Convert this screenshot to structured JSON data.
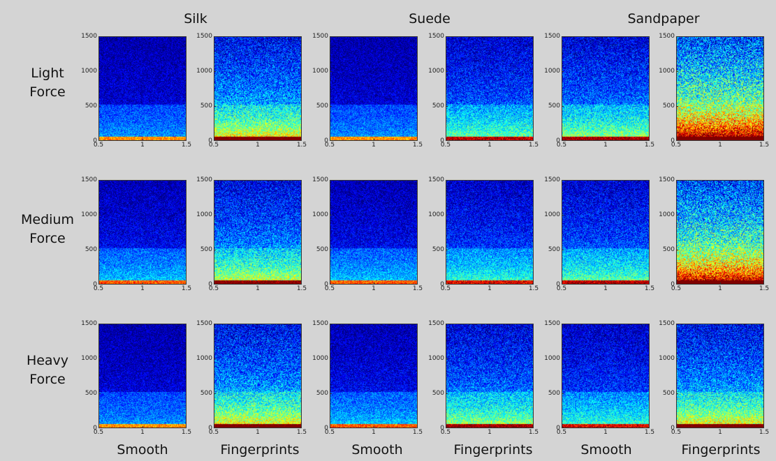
{
  "columns": [
    {
      "label": "Silk"
    },
    {
      "label": "Suede"
    },
    {
      "label": "Sandpaper"
    }
  ],
  "rows": [
    {
      "line1": "Light",
      "line2": "Force"
    },
    {
      "line1": "Medium",
      "line2": "Force"
    },
    {
      "line1": "Heavy",
      "line2": "Force"
    }
  ],
  "sub_labels": [
    "Smooth",
    "Fingerprints",
    "Smooth",
    "Fingerprints",
    "Smooth",
    "Fingerprints"
  ],
  "chart_data": {
    "type": "heatmap",
    "colormap": "jet",
    "x": {
      "range": [
        0.5,
        1.5
      ],
      "ticks": [
        "0.5",
        "1",
        "1.5"
      ]
    },
    "y": {
      "range": [
        0,
        1500
      ],
      "ticks": [
        "0",
        "500",
        "1000",
        "1500"
      ]
    },
    "panels": [
      {
        "row": "Light Force",
        "material": "Silk",
        "surface": "Smooth",
        "intensity": 0.15
      },
      {
        "row": "Light Force",
        "material": "Silk",
        "surface": "Fingerprints",
        "intensity": 0.5
      },
      {
        "row": "Light Force",
        "material": "Suede",
        "surface": "Smooth",
        "intensity": 0.15
      },
      {
        "row": "Light Force",
        "material": "Suede",
        "surface": "Fingerprints",
        "intensity": 0.35
      },
      {
        "row": "Light Force",
        "material": "Sandpaper",
        "surface": "Smooth",
        "intensity": 0.4
      },
      {
        "row": "Light Force",
        "material": "Sandpaper",
        "surface": "Fingerprints",
        "intensity": 0.85
      },
      {
        "row": "Medium Force",
        "material": "Silk",
        "surface": "Smooth",
        "intensity": 0.2
      },
      {
        "row": "Medium Force",
        "material": "Silk",
        "surface": "Fingerprints",
        "intensity": 0.45
      },
      {
        "row": "Medium Force",
        "material": "Suede",
        "surface": "Smooth",
        "intensity": 0.2
      },
      {
        "row": "Medium Force",
        "material": "Suede",
        "surface": "Fingerprints",
        "intensity": 0.3
      },
      {
        "row": "Medium Force",
        "material": "Sandpaper",
        "surface": "Smooth",
        "intensity": 0.35
      },
      {
        "row": "Medium Force",
        "material": "Sandpaper",
        "surface": "Fingerprints",
        "intensity": 0.8
      },
      {
        "row": "Heavy Force",
        "material": "Silk",
        "surface": "Smooth",
        "intensity": 0.15
      },
      {
        "row": "Heavy Force",
        "material": "Silk",
        "surface": "Fingerprints",
        "intensity": 0.5
      },
      {
        "row": "Heavy Force",
        "material": "Suede",
        "surface": "Smooth",
        "intensity": 0.2
      },
      {
        "row": "Heavy Force",
        "material": "Suede",
        "surface": "Fingerprints",
        "intensity": 0.4
      },
      {
        "row": "Heavy Force",
        "material": "Sandpaper",
        "surface": "Smooth",
        "intensity": 0.3
      },
      {
        "row": "Heavy Force",
        "material": "Sandpaper",
        "surface": "Fingerprints",
        "intensity": 0.5
      }
    ]
  }
}
